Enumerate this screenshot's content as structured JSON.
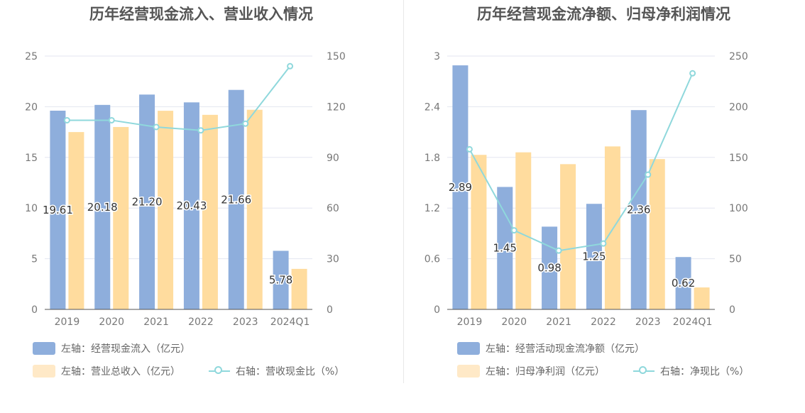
{
  "chart_data": [
    {
      "type": "bar",
      "title": "历年经营现金流入、营业收入情况",
      "categories": [
        "2019",
        "2020",
        "2021",
        "2022",
        "2023",
        "2024Q1"
      ],
      "y_left": {
        "ylim": [
          0,
          25
        ],
        "ticks": [
          "0",
          "5",
          "10",
          "15",
          "20",
          "25"
        ]
      },
      "y_right": {
        "ylim": [
          0,
          150
        ],
        "ticks": [
          "0",
          "30",
          "60",
          "90",
          "120",
          "150"
        ]
      },
      "series": [
        {
          "name": "左轴：经营现金流入（亿元）",
          "axis": "left",
          "kind": "bar",
          "color": "#8eaedc",
          "values": [
            19.61,
            20.18,
            21.2,
            20.43,
            21.66,
            5.78
          ],
          "labels": [
            "19.61",
            "20.18",
            "21.20",
            "20.43",
            "21.66",
            "5.78"
          ]
        },
        {
          "name": "左轴：营业总收入（亿元）",
          "axis": "left",
          "kind": "bar",
          "color": "#ffdc9e",
          "values": [
            17.5,
            18.0,
            19.6,
            19.2,
            19.7,
            4.0
          ]
        },
        {
          "name": "右轴：营收现金比（%）",
          "axis": "right",
          "kind": "line",
          "color": "#8fd8dc",
          "values": [
            112,
            112,
            108,
            106,
            110,
            144
          ]
        }
      ],
      "grid": true,
      "legend_position": "bottom"
    },
    {
      "type": "bar",
      "title": "历年经营现金流净额、归母净利润情况",
      "categories": [
        "2019",
        "2020",
        "2021",
        "2022",
        "2023",
        "2024Q1"
      ],
      "y_left": {
        "ylim": [
          0,
          3
        ],
        "ticks": [
          "0",
          "0.6",
          "1.2",
          "1.8",
          "2.4",
          "3"
        ]
      },
      "y_right": {
        "ylim": [
          0,
          250
        ],
        "ticks": [
          "0",
          "50",
          "100",
          "150",
          "200",
          "250"
        ]
      },
      "series": [
        {
          "name": "左轴：经营活动现金流净额（亿元）",
          "axis": "left",
          "kind": "bar",
          "color": "#8eaedc",
          "values": [
            2.89,
            1.45,
            0.98,
            1.25,
            2.36,
            0.62
          ],
          "labels": [
            "2.89",
            "1.45",
            "0.98",
            "1.25",
            "2.36",
            "0.62"
          ]
        },
        {
          "name": "左轴：归母净利润（亿元）",
          "axis": "left",
          "kind": "bar",
          "color": "#ffdc9e",
          "values": [
            1.83,
            1.86,
            1.72,
            1.93,
            1.78,
            0.26
          ]
        },
        {
          "name": "右轴：净现比（%）",
          "axis": "right",
          "kind": "line",
          "color": "#8fd8dc",
          "values": [
            158,
            78,
            58,
            65,
            133,
            233
          ]
        }
      ],
      "grid": true,
      "legend_position": "bottom"
    }
  ]
}
